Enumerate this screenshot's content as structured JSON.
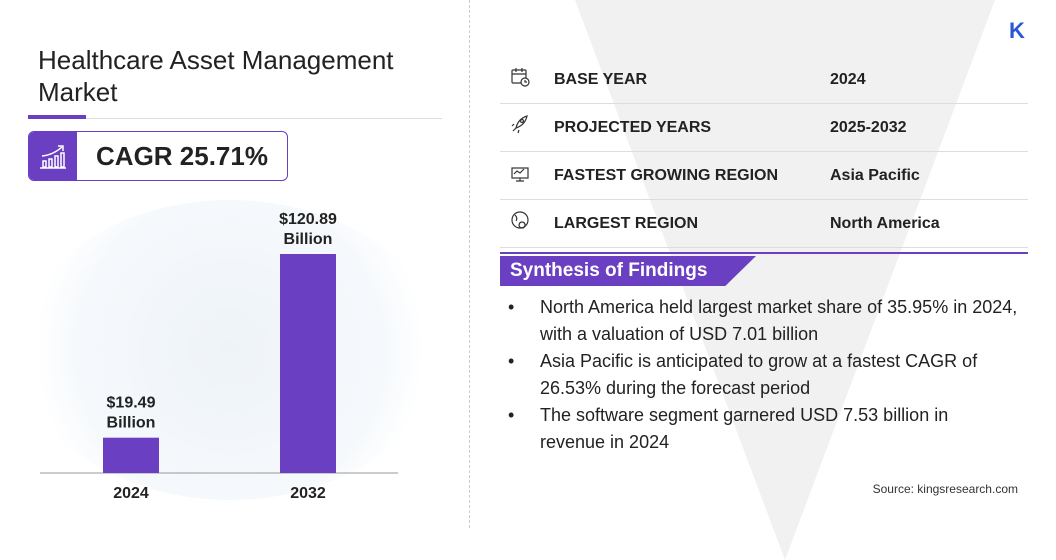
{
  "title": "Healthcare Asset Management Market",
  "cagr": "CAGR 25.71%",
  "chart_data": {
    "type": "bar",
    "categories": [
      "2024",
      "2032"
    ],
    "values": [
      19.49,
      120.89
    ],
    "data_labels": [
      [
        "$19.49",
        "Billion"
      ],
      [
        "$120.89",
        "Billion"
      ]
    ],
    "unit": "USD Billion",
    "bar_color": "#6a3fc1"
  },
  "table": [
    {
      "icon": "calendar-clock-icon",
      "label": "BASE YEAR",
      "value": "2024"
    },
    {
      "icon": "rocket-icon",
      "label": "PROJECTED YEARS",
      "value": "2025-2032"
    },
    {
      "icon": "growth-chart-icon",
      "label": "FASTEST GROWING REGION",
      "value": "Asia Pacific"
    },
    {
      "icon": "globe-icon",
      "label": "LARGEST REGION",
      "value": "North America"
    }
  ],
  "synthesis": {
    "heading": "Synthesis of Findings",
    "items": [
      "North America held largest market share of 35.95% in 2024, with a valuation of USD 7.01 billion",
      "Asia Pacific is anticipated to grow at a fastest CAGR of 26.53% during the forecast period",
      "The software segment garnered USD 7.53 billion in revenue in 2024"
    ]
  },
  "source": "Source:  kingsresearch.com",
  "logo": "K",
  "accent": "#6a3fc1"
}
